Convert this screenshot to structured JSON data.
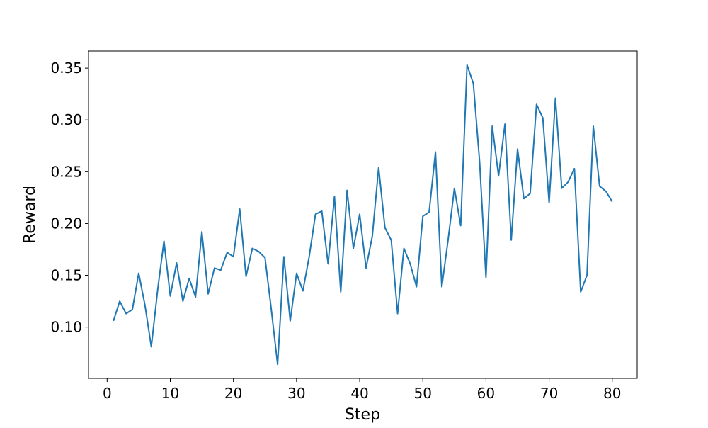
{
  "chart_data": {
    "type": "line",
    "title": "",
    "xlabel": "Step",
    "ylabel": "Reward",
    "xlim": [
      -2.95,
      83.95
    ],
    "ylim": [
      0.0505,
      0.3665
    ],
    "xticks": [
      0,
      10,
      20,
      30,
      40,
      50,
      60,
      70,
      80
    ],
    "xtick_labels": [
      "0",
      "10",
      "20",
      "30",
      "40",
      "50",
      "60",
      "70",
      "80"
    ],
    "yticks": [
      0.1,
      0.15,
      0.2,
      0.25,
      0.3,
      0.35
    ],
    "ytick_labels": [
      "0.10",
      "0.15",
      "0.20",
      "0.25",
      "0.30",
      "0.35"
    ],
    "grid": false,
    "series": [
      {
        "color": "#1f77b4",
        "x": [
          1,
          2,
          3,
          4,
          5,
          6,
          7,
          8,
          9,
          10,
          11,
          12,
          13,
          14,
          15,
          16,
          17,
          18,
          19,
          20,
          21,
          22,
          23,
          24,
          25,
          26,
          27,
          28,
          29,
          30,
          31,
          32,
          33,
          34,
          35,
          36,
          37,
          38,
          39,
          40,
          41,
          42,
          43,
          44,
          45,
          46,
          47,
          48,
          49,
          50,
          51,
          52,
          53,
          54,
          55,
          56,
          57,
          58,
          59,
          60,
          61,
          62,
          63,
          64,
          65,
          66,
          67,
          68,
          69,
          70,
          71,
          72,
          73,
          74,
          75,
          76,
          77,
          78,
          79,
          80
        ],
        "y": [
          0.106,
          0.125,
          0.113,
          0.117,
          0.152,
          0.121,
          0.081,
          0.136,
          0.183,
          0.13,
          0.162,
          0.125,
          0.147,
          0.129,
          0.192,
          0.132,
          0.157,
          0.155,
          0.172,
          0.168,
          0.214,
          0.149,
          0.176,
          0.173,
          0.167,
          0.117,
          0.064,
          0.168,
          0.106,
          0.152,
          0.135,
          0.168,
          0.209,
          0.212,
          0.161,
          0.226,
          0.134,
          0.232,
          0.176,
          0.209,
          0.157,
          0.188,
          0.254,
          0.196,
          0.184,
          0.113,
          0.176,
          0.161,
          0.139,
          0.207,
          0.211,
          0.269,
          0.139,
          0.184,
          0.234,
          0.198,
          0.353,
          0.335,
          0.259,
          0.148,
          0.294,
          0.246,
          0.296,
          0.184,
          0.272,
          0.224,
          0.229,
          0.315,
          0.302,
          0.22,
          0.321,
          0.234,
          0.24,
          0.253,
          0.134,
          0.15,
          0.294,
          0.236,
          0.231,
          0.221
        ]
      }
    ]
  }
}
